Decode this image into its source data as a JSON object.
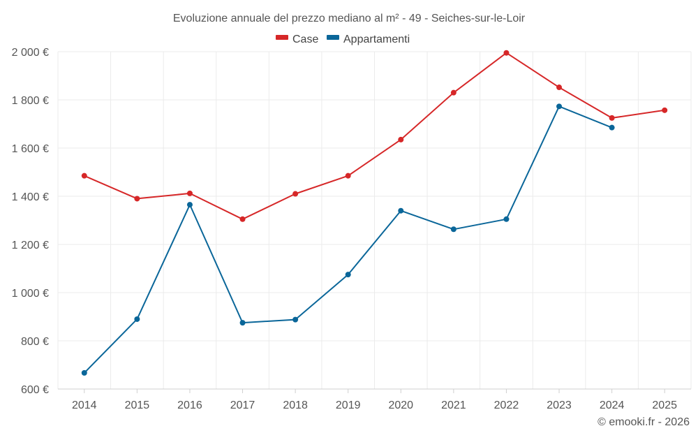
{
  "chart_data": {
    "type": "line",
    "title": "Evoluzione annuale del prezzo mediano al m² - 49 - Seiches-sur-le-Loir",
    "categories": [
      "2014",
      "2015",
      "2016",
      "2017",
      "2018",
      "2019",
      "2020",
      "2021",
      "2022",
      "2023",
      "2024",
      "2025"
    ],
    "series": [
      {
        "name": "Case",
        "color": "#d62728",
        "values": [
          1485,
          1390,
          1412,
          1305,
          1410,
          1485,
          1635,
          1830,
          1995,
          1852,
          1725,
          1757
        ]
      },
      {
        "name": "Appartamenti",
        "color": "#0a6699",
        "values": [
          667,
          890,
          1365,
          875,
          888,
          1075,
          1340,
          1263,
          1305,
          1773,
          1685,
          null
        ]
      }
    ],
    "y_ticks": [
      600,
      800,
      1000,
      1200,
      1400,
      1600,
      1800,
      2000
    ],
    "y_tick_labels": [
      "600 €",
      "800 €",
      "1 000 €",
      "1 200 €",
      "1 400 €",
      "1 600 €",
      "1 800 €",
      "2 000 €"
    ],
    "ylim": [
      600,
      2000
    ],
    "grid": true,
    "legend_position": "top-center",
    "xlabel": "",
    "ylabel": ""
  },
  "credit": "© emooki.fr - 2026"
}
